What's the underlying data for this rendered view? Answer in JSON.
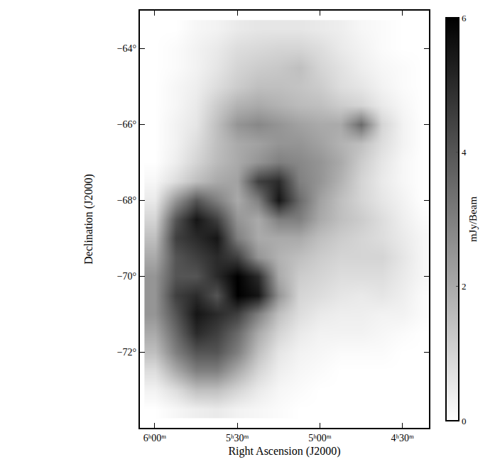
{
  "chart_data": {
    "type": "heatmap",
    "x_label": "Right Ascension (J2000)",
    "y_label": "Declination (J2000)",
    "colorbar_title": "mJy/Beam",
    "color": "#000000",
    "grid": false,
    "x": [
      6.0,
      5.875,
      5.75,
      5.625,
      5.5,
      5.375,
      5.25,
      5.125,
      5.0,
      4.875,
      4.75,
      4.625,
      4.5,
      4.375
    ],
    "y": [
      -63.5,
      -64,
      -64.5,
      -65,
      -65.5,
      -66,
      -66.5,
      -67,
      -67.5,
      -68,
      -68.5,
      -69,
      -69.5,
      -70,
      -70.5,
      -71,
      -71.5,
      -72,
      -72.5,
      -73,
      -73.5
    ],
    "z": [
      [
        0,
        0,
        0.2,
        0.3,
        0.5,
        0.6,
        0.6,
        0.6,
        0.5,
        0.4,
        0.2,
        0.1,
        0,
        0
      ],
      [
        0,
        0.1,
        0.3,
        0.5,
        0.8,
        0.9,
        1.0,
        1.0,
        0.8,
        0.5,
        0.3,
        0.1,
        0,
        0
      ],
      [
        0,
        0.1,
        0.3,
        0.6,
        1.0,
        1.2,
        1.3,
        1.5,
        1.0,
        0.7,
        0.4,
        0.2,
        0.1,
        0
      ],
      [
        0,
        0.2,
        0.4,
        0.8,
        1.2,
        1.5,
        1.5,
        1.4,
        1.2,
        0.8,
        0.6,
        0.3,
        0.1,
        0
      ],
      [
        0,
        0.2,
        0.5,
        1.2,
        1.8,
        2.0,
        1.8,
        1.6,
        1.5,
        1.2,
        1.0,
        0.5,
        0.2,
        0
      ],
      [
        0,
        0.3,
        0.6,
        1.5,
        2.5,
        2.8,
        2.5,
        2.2,
        2.0,
        2.0,
        3.5,
        1.0,
        0.3,
        0
      ],
      [
        0,
        0.3,
        0.8,
        1.5,
        2.0,
        2.2,
        2.5,
        2.5,
        2.2,
        1.8,
        1.5,
        0.8,
        0.3,
        0
      ],
      [
        0,
        0.4,
        1.0,
        1.6,
        2.0,
        2.5,
        3.0,
        2.8,
        2.5,
        2.0,
        1.2,
        0.6,
        0.2,
        0
      ],
      [
        0.2,
        0.8,
        1.5,
        2.0,
        2.2,
        4.5,
        5.0,
        3.0,
        2.5,
        1.8,
        1.0,
        0.5,
        0.2,
        0
      ],
      [
        0.5,
        2.5,
        4.0,
        3.0,
        2.0,
        3.0,
        5.5,
        3.5,
        2.2,
        1.5,
        1.0,
        0.6,
        0.3,
        0
      ],
      [
        1.0,
        4.0,
        5.5,
        4.5,
        2.5,
        2.0,
        3.0,
        3.0,
        2.0,
        1.5,
        1.2,
        0.8,
        0.4,
        0.1
      ],
      [
        1.5,
        4.5,
        5.0,
        5.5,
        3.0,
        2.0,
        2.0,
        2.0,
        1.5,
        1.2,
        1.0,
        0.8,
        0.5,
        0.2
      ],
      [
        2.0,
        4.0,
        4.5,
        5.0,
        4.5,
        2.5,
        1.8,
        1.5,
        1.2,
        1.0,
        1.0,
        1.0,
        0.6,
        0.2
      ],
      [
        2.5,
        4.0,
        4.0,
        5.0,
        6.0,
        5.0,
        2.0,
        1.2,
        1.0,
        0.8,
        0.8,
        0.8,
        0.5,
        0.2
      ],
      [
        2.5,
        4.5,
        5.0,
        4.0,
        6.0,
        5.5,
        2.5,
        1.0,
        0.8,
        0.6,
        0.5,
        0.6,
        0.4,
        0.1
      ],
      [
        2.5,
        4.0,
        5.5,
        5.0,
        4.5,
        3.0,
        1.5,
        0.8,
        0.5,
        0.4,
        0.4,
        0.3,
        0.3,
        0.1
      ],
      [
        2.0,
        3.5,
        5.0,
        4.5,
        3.5,
        2.0,
        1.0,
        0.5,
        0.3,
        0.3,
        0.3,
        0.2,
        0.1,
        0
      ],
      [
        1.5,
        3.0,
        4.0,
        4.0,
        3.0,
        1.5,
        0.6,
        0.3,
        0.2,
        0.1,
        0.1,
        0.1,
        0,
        0
      ],
      [
        0.8,
        2.0,
        3.0,
        3.0,
        2.0,
        1.0,
        0.4,
        0.2,
        0.1,
        0,
        0,
        0,
        0,
        0
      ],
      [
        0.3,
        0.8,
        1.5,
        1.5,
        1.0,
        0.5,
        0.2,
        0.1,
        0,
        0,
        0,
        0,
        0,
        0
      ],
      [
        0,
        0.2,
        0.4,
        0.5,
        0.3,
        0.2,
        0.1,
        0,
        0,
        0,
        0,
        0,
        0,
        0
      ]
    ],
    "xlim": [
      6.09,
      4.34
    ],
    "xticks": [
      {
        "value": 6.0,
        "label": "6ʰ00ᵐ"
      },
      {
        "value": 5.5,
        "label": "5ʰ30ᵐ"
      },
      {
        "value": 5.0,
        "label": "5ʰ00ᵐ"
      },
      {
        "value": 4.5,
        "label": "4ʰ30ᵐ"
      }
    ],
    "ylim": [
      -74.0,
      -63.0
    ],
    "yticks": [
      {
        "value": -64,
        "label": "−64°"
      },
      {
        "value": -66,
        "label": "−66°"
      },
      {
        "value": -68,
        "label": "−68°"
      },
      {
        "value": -70,
        "label": "−70°"
      },
      {
        "value": -72,
        "label": "−72°"
      }
    ],
    "zlim": [
      0,
      6
    ],
    "zticks": [
      0,
      2,
      4,
      6
    ]
  }
}
